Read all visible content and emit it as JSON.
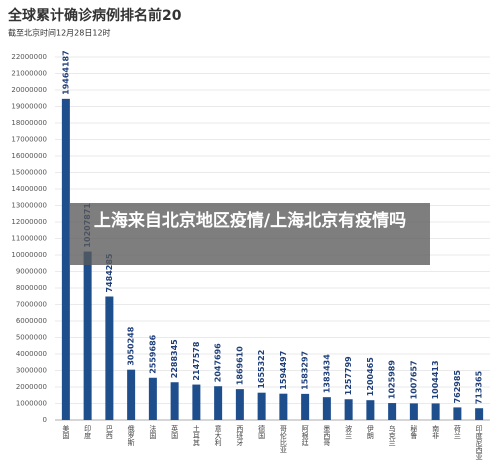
{
  "chart_data": {
    "type": "bar",
    "title": "全球累计确诊病例排名前20",
    "subtitle": "截至北京时间12月28日12时",
    "categories": [
      "美国",
      "印度",
      "巴西",
      "俄罗斯",
      "法国",
      "英国",
      "土耳其",
      "意大利",
      "西班牙",
      "德国",
      "哥伦比亚",
      "阿根廷",
      "墨西哥",
      "波兰",
      "伊朗",
      "乌克兰",
      "秘鲁",
      "南非",
      "荷兰",
      "印度尼西亚"
    ],
    "values": [
      19464187,
      10207871,
      7484285,
      3050248,
      2559686,
      2288345,
      2147578,
      2047696,
      1869610,
      1655322,
      1594497,
      1583297,
      1383434,
      1257799,
      1200465,
      1025989,
      1007657,
      1004413,
      762985,
      713365
    ],
    "color": "#1f4e8c",
    "ylim": [
      0,
      22000000
    ],
    "yticks": [
      0,
      1000000,
      2000000,
      3000000,
      4000000,
      5000000,
      6000000,
      7000000,
      8000000,
      9000000,
      10000000,
      11000000,
      12000000,
      13000000,
      14000000,
      15000000,
      16000000,
      17000000,
      18000000,
      19000000,
      20000000,
      21000000,
      22000000
    ],
    "grid": true,
    "annotation": "上海来自北京地区疫情/上海北京有疫情吗"
  }
}
